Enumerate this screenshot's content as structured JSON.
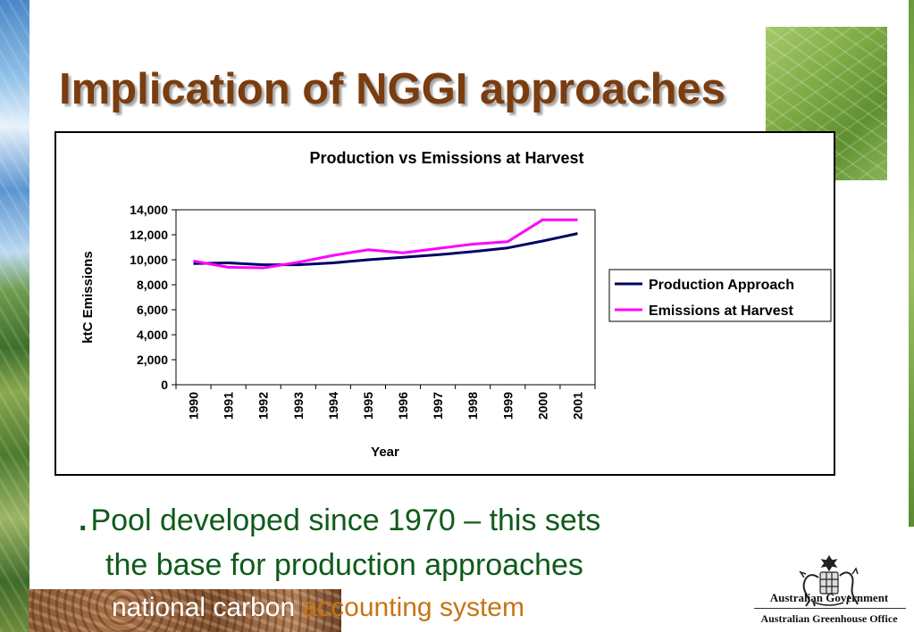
{
  "slide": {
    "title": "Implication of NGGI approaches",
    "bullet_marker": ".",
    "bullet_line1": "Pool developed since 1970 – this sets",
    "bullet_line2": "the base for production approaches",
    "footer_part1": "national carbon",
    "footer_part2": "accounting system",
    "gov_line1": "Australian Government",
    "gov_line2": "Australian Greenhouse Office",
    "colors": {
      "title": "#7a3d0f",
      "bullet": "#0f5b1a",
      "footer_accent": "#c77412"
    }
  },
  "chart_data": {
    "type": "line",
    "title": "Production vs Emissions at Harvest",
    "xlabel": "Year",
    "ylabel": "ktC Emissions",
    "categories": [
      "1990",
      "1991",
      "1992",
      "1993",
      "1994",
      "1995",
      "1996",
      "1997",
      "1998",
      "1999",
      "2000",
      "2001"
    ],
    "ylim": [
      0,
      14000
    ],
    "ytick_values": [
      0,
      2000,
      4000,
      6000,
      8000,
      10000,
      12000,
      14000
    ],
    "ytick_labels": [
      "0",
      "2,000",
      "4,000",
      "6,000",
      "8,000",
      "10,000",
      "12,000",
      "14,000"
    ],
    "grid": false,
    "legend_position": "right",
    "series": [
      {
        "name": "Production Approach",
        "color": "#000066",
        "values": [
          9700,
          9750,
          9600,
          9600,
          9750,
          10000,
          10200,
          10400,
          10650,
          10950,
          11500,
          12100
        ]
      },
      {
        "name": "Emissions at Harvest",
        "color": "#ff00ff",
        "values": [
          9900,
          9400,
          9350,
          9800,
          10350,
          10800,
          10550,
          10900,
          11250,
          11450,
          13200,
          13200
        ]
      }
    ]
  }
}
